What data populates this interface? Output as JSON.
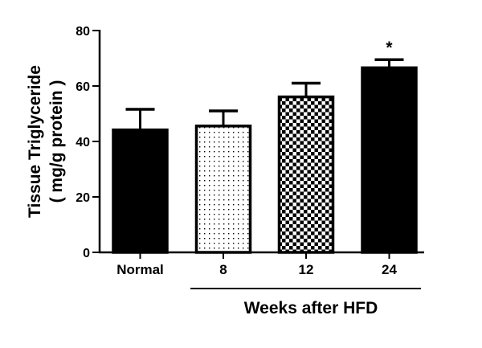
{
  "chart_data": {
    "type": "bar",
    "title": "",
    "xlabel": "Weeks after HFD",
    "ylabel": "Tissue Triglyceride ( mg/g protein )",
    "ylabel_line1": "Tissue Triglyceride",
    "ylabel_line2": "( mg/g protein )",
    "ylim": [
      0,
      80
    ],
    "yticks": [
      0,
      20,
      40,
      60,
      80
    ],
    "categories": [
      "Normal",
      "8",
      "12",
      "24"
    ],
    "values": [
      44.6,
      46,
      56.5,
      67
    ],
    "errors": [
      7,
      5,
      4.5,
      2.5
    ],
    "patterns": [
      "solid-black",
      "dotted",
      "checkerboard",
      "solid-black"
    ],
    "annotations": [
      {
        "category": "24",
        "text": "*"
      }
    ],
    "group_label": {
      "text": "Weeks after HFD",
      "spans": [
        "8",
        "12",
        "24"
      ]
    },
    "grid": false,
    "legend": null
  }
}
